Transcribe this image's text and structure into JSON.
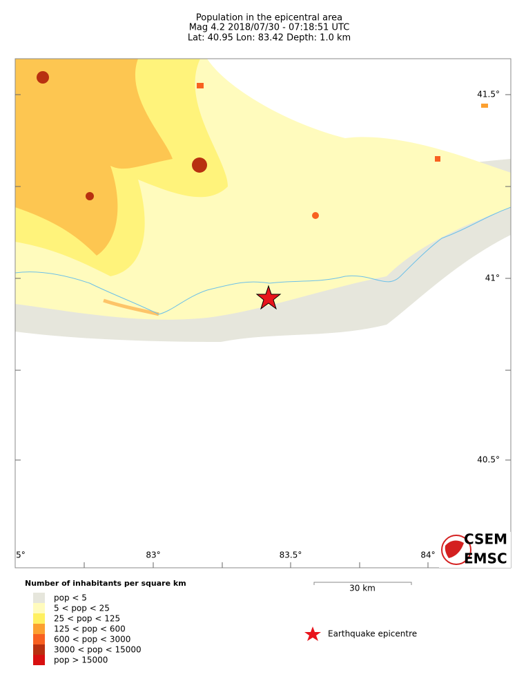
{
  "header": {
    "title": "Population in the epicentral area",
    "line2": "Mag 4.2  2018/07/30 - 07:18:51 UTC",
    "line3": "Lat: 40.95    Lon:  83.42    Depth:  1.0 km"
  },
  "map": {
    "lon_labels": [
      "5°",
      "83°",
      "83.5°",
      "84°"
    ],
    "lat_labels": [
      "41.5°",
      "41°",
      "40.5°"
    ],
    "scale_label": "30 km"
  },
  "legend": {
    "title": "Number of inhabitants per square km",
    "items": [
      {
        "label": "pop < 5",
        "color": "#e6e6dc"
      },
      {
        "label": "5 < pop < 25",
        "color": "#fffbbd"
      },
      {
        "label": "25 < pop < 125",
        "color": "#fff060"
      },
      {
        "label": "125 < pop < 600",
        "color": "#fca030"
      },
      {
        "label": "600 < pop < 3000",
        "color": "#f86020"
      },
      {
        "label": "3000 < pop < 15000",
        "color": "#b83010"
      },
      {
        "label": "pop > 15000",
        "color": "#d81010"
      }
    ],
    "epicentre": "Earthquake epicentre"
  },
  "logo": {
    "top": "CSEM",
    "bottom": "EMSC"
  }
}
